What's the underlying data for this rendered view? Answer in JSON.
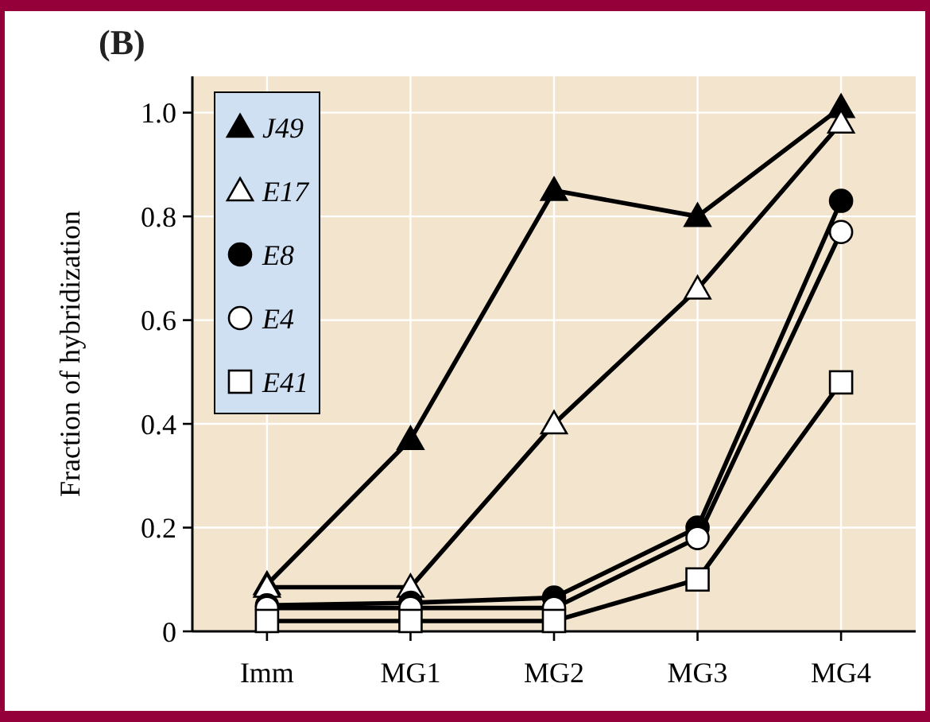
{
  "chart_data": {
    "type": "line",
    "title": "(B)",
    "ylabel": "Fraction of hybridization",
    "categories": [
      "Imm",
      "MG1",
      "MG2",
      "MG3",
      "MG4"
    ],
    "ylim": [
      0,
      1.07
    ],
    "yticks": [
      {
        "value": 0,
        "label": "0"
      },
      {
        "value": 0.2,
        "label": "0.2"
      },
      {
        "value": 0.4,
        "label": "0.4"
      },
      {
        "value": 0.6,
        "label": "0.6"
      },
      {
        "value": 0.8,
        "label": "0.8"
      },
      {
        "value": 1,
        "label": "1.0"
      }
    ],
    "grid": true,
    "legend": "top left",
    "series": [
      {
        "name": "J49",
        "color": "#000000",
        "marker": "triangle",
        "values": [
          0.09,
          0.37,
          0.85,
          0.8,
          1.01
        ]
      },
      {
        "name": "E17",
        "color": "#000000",
        "marker": "triangle-open",
        "values": [
          0.085,
          0.085,
          0.4,
          0.66,
          0.98
        ]
      },
      {
        "name": "E8",
        "color": "#000000",
        "marker": "circle",
        "values": [
          0.05,
          0.055,
          0.065,
          0.2,
          0.83
        ]
      },
      {
        "name": "E4",
        "color": "#000000",
        "marker": "circle-open",
        "values": [
          0.045,
          0.045,
          0.045,
          0.18,
          0.77
        ]
      },
      {
        "name": "E41",
        "color": "#000000",
        "marker": "square-open",
        "values": [
          0.02,
          0.02,
          0.02,
          0.1,
          0.48
        ]
      }
    ]
  }
}
